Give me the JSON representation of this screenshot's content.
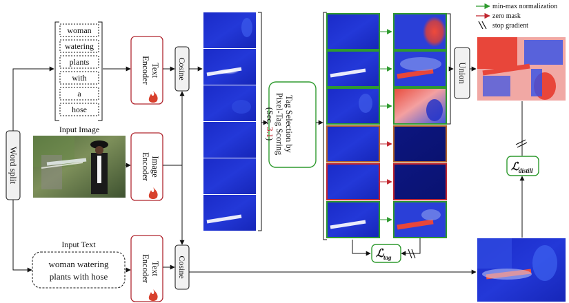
{
  "legend": {
    "items": [
      {
        "label": "min-max normalization",
        "color": "#2e9a2e",
        "icon": "green-arrow-icon"
      },
      {
        "label": "zero mask",
        "color": "#c0262f",
        "icon": "red-arrow-icon"
      },
      {
        "label": "stop gradient",
        "color": "#111111",
        "icon": "double-slash-icon"
      }
    ]
  },
  "word_split": {
    "label": "Word split"
  },
  "tokens": [
    "woman",
    "watering",
    "plants",
    "with",
    "a",
    "hose"
  ],
  "input_image": {
    "label": "Input Image"
  },
  "input_text": {
    "label": "Input Text",
    "line1": "woman watering",
    "line2": "plants with hose"
  },
  "encoders": {
    "text_top": {
      "line1": "Text",
      "line2": "Encoder"
    },
    "image": {
      "line1": "Image",
      "line2": "Encoder"
    },
    "text_bottom": {
      "line1": "Text",
      "line2": "Encoder"
    }
  },
  "cosine": {
    "top": "Cosine",
    "bottom": "Cosine"
  },
  "tag_selection": {
    "line1": "Tag Selection by",
    "line2": "Pixel-Tag Scoring",
    "line3_open": "(Sec. ",
    "line3_ref": "3.1",
    "line3_close": ")"
  },
  "union": {
    "label": "Union"
  },
  "loss_tag": {
    "symbol": "ℒ",
    "sub": "tag"
  },
  "loss_distill": {
    "symbol": "ℒ",
    "sub": "distill"
  },
  "colors": {
    "green": "#2e9a2e",
    "red": "#c0262f",
    "fire": "#d8402c",
    "heatmap_bg": "#1e2fd0",
    "heatmap_hot": "#e8463a"
  },
  "frame_borders": [
    "green",
    "green",
    "green",
    "red",
    "red",
    "green"
  ]
}
